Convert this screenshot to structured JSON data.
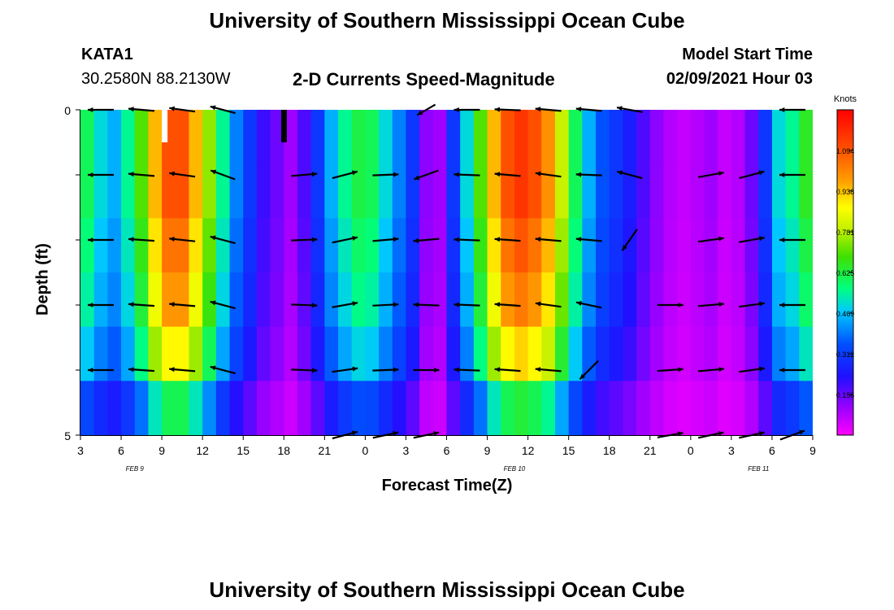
{
  "page": {
    "title_top": "University of Southern Mississippi Ocean Cube",
    "title_bottom": "University of Southern Mississippi Ocean Cube",
    "station": "KATA1",
    "coords": "30.2580N 88.2130W",
    "model_start_label": "Model Start Time",
    "model_start_value": "02/09/2021 Hour 03"
  },
  "chart_data": {
    "type": "heatmap",
    "title": "2-D Currents Speed-Magnitude",
    "xlabel": "Forecast Time(Z)",
    "ylabel": "Depth (ft)",
    "ylim": [
      0,
      5
    ],
    "y_ticks": [
      "0",
      "5"
    ],
    "x_ticks": [
      "3",
      "6",
      "9",
      "12",
      "15",
      "18",
      "21",
      "0",
      "3",
      "6",
      "9",
      "12",
      "15",
      "18",
      "21",
      "0",
      "3",
      "6",
      "9"
    ],
    "date_labels": [
      {
        "label": "FEB  9",
        "hour_index": 4
      },
      {
        "label": "FEB  10",
        "hour_index": 32
      },
      {
        "label": "FEB  11",
        "hour_index": 50
      }
    ],
    "x_hours_start": 3,
    "x_hours_span": 54,
    "colorbar": {
      "unit": "Knots",
      "ticks": [
        "1.094",
        "0.938",
        "0.781",
        "0.625",
        "0.469",
        "0.312",
        "0.156"
      ],
      "tick_values": [
        1.094,
        0.938,
        0.781,
        0.625,
        0.469,
        0.312,
        0.156
      ],
      "min": 0.0,
      "max": 1.25
    },
    "depth_layers": [
      0,
      1,
      2,
      3,
      4,
      5
    ],
    "speed_profile_hours": [
      3,
      4,
      5,
      6,
      7,
      8,
      9,
      10,
      11,
      12,
      13,
      14,
      15,
      16,
      17,
      18,
      19,
      20,
      21,
      22,
      23,
      24,
      25,
      26,
      27,
      28,
      29,
      30,
      31,
      32,
      33,
      34,
      35,
      36,
      37,
      38,
      39,
      40,
      41,
      42,
      43,
      44,
      45,
      46,
      47,
      48,
      49,
      50,
      51,
      52,
      53,
      54,
      55,
      56,
      57
    ],
    "speed_profile": [
      0.6,
      0.5,
      0.45,
      0.55,
      0.7,
      0.95,
      1.1,
      1.1,
      0.95,
      0.75,
      0.55,
      0.4,
      0.3,
      0.2,
      0.15,
      0.1,
      0.18,
      0.3,
      0.45,
      0.55,
      0.62,
      0.6,
      0.5,
      0.4,
      0.3,
      0.12,
      0.1,
      0.3,
      0.5,
      0.7,
      0.95,
      1.1,
      1.15,
      1.1,
      1.0,
      0.8,
      0.6,
      0.45,
      0.35,
      0.3,
      0.25,
      0.18,
      0.12,
      0.08,
      0.06,
      0.08,
      0.1,
      0.06,
      0.08,
      0.15,
      0.3,
      0.5,
      0.55,
      0.65,
      0.7
    ],
    "depth_factors": [
      1.0,
      1.0,
      0.95,
      0.9,
      0.8,
      0.55
    ],
    "arrows": [
      {
        "hour": 4.5,
        "depth": 0,
        "dir": 180,
        "len": 1.0
      },
      {
        "hour": 7.5,
        "depth": 0,
        "dir": 175,
        "len": 1.0
      },
      {
        "hour": 10.5,
        "depth": 0,
        "dir": 172,
        "len": 1.0
      },
      {
        "hour": 13.5,
        "depth": 0,
        "dir": 165,
        "len": 1.0
      },
      {
        "hour": 28.5,
        "depth": 0,
        "dir": 210,
        "len": 0.8
      },
      {
        "hour": 31.5,
        "depth": 0,
        "dir": 180,
        "len": 1.0
      },
      {
        "hour": 34.5,
        "depth": 0,
        "dir": 178,
        "len": 1.0
      },
      {
        "hour": 37.5,
        "depth": 0,
        "dir": 175,
        "len": 1.0
      },
      {
        "hour": 40.5,
        "depth": 0,
        "dir": 175,
        "len": 1.0
      },
      {
        "hour": 43.5,
        "depth": 0,
        "dir": 170,
        "len": 1.0
      },
      {
        "hour": 55.5,
        "depth": 0,
        "dir": 180,
        "len": 1.0
      },
      {
        "hour": 4.5,
        "depth": 1,
        "dir": 180,
        "len": 1.0
      },
      {
        "hour": 7.5,
        "depth": 1,
        "dir": 175,
        "len": 1.0
      },
      {
        "hour": 10.5,
        "depth": 1,
        "dir": 172,
        "len": 1.0
      },
      {
        "hour": 13.5,
        "depth": 1,
        "dir": 160,
        "len": 1.0
      },
      {
        "hour": 19.5,
        "depth": 1,
        "dir": 5,
        "len": 1.0
      },
      {
        "hour": 22.5,
        "depth": 1,
        "dir": 15,
        "len": 1.0
      },
      {
        "hour": 25.5,
        "depth": 1,
        "dir": 2,
        "len": 1.0
      },
      {
        "hour": 28.5,
        "depth": 1,
        "dir": 200,
        "len": 1.0
      },
      {
        "hour": 31.5,
        "depth": 1,
        "dir": 178,
        "len": 1.0
      },
      {
        "hour": 34.5,
        "depth": 1,
        "dir": 175,
        "len": 1.0
      },
      {
        "hour": 37.5,
        "depth": 1,
        "dir": 172,
        "len": 1.0
      },
      {
        "hour": 40.5,
        "depth": 1,
        "dir": 178,
        "len": 1.0
      },
      {
        "hour": 43.5,
        "depth": 1,
        "dir": 165,
        "len": 1.0
      },
      {
        "hour": 49.5,
        "depth": 1,
        "dir": 10,
        "len": 1.0
      },
      {
        "hour": 52.5,
        "depth": 1,
        "dir": 15,
        "len": 1.0
      },
      {
        "hour": 55.5,
        "depth": 1,
        "dir": 180,
        "len": 1.0
      },
      {
        "hour": 4.5,
        "depth": 2,
        "dir": 180,
        "len": 1.0
      },
      {
        "hour": 7.5,
        "depth": 2,
        "dir": 176,
        "len": 1.0
      },
      {
        "hour": 10.5,
        "depth": 2,
        "dir": 174,
        "len": 1.0
      },
      {
        "hour": 13.5,
        "depth": 2,
        "dir": 165,
        "len": 1.0
      },
      {
        "hour": 19.5,
        "depth": 2,
        "dir": 2,
        "len": 1.0
      },
      {
        "hour": 22.5,
        "depth": 2,
        "dir": 12,
        "len": 1.0
      },
      {
        "hour": 25.5,
        "depth": 2,
        "dir": 5,
        "len": 1.0
      },
      {
        "hour": 28.5,
        "depth": 2,
        "dir": 185,
        "len": 1.0
      },
      {
        "hour": 31.5,
        "depth": 2,
        "dir": 178,
        "len": 1.0
      },
      {
        "hour": 34.5,
        "depth": 2,
        "dir": 176,
        "len": 1.0
      },
      {
        "hour": 37.5,
        "depth": 2,
        "dir": 175,
        "len": 1.0
      },
      {
        "hour": 40.5,
        "depth": 2,
        "dir": 175,
        "len": 1.0
      },
      {
        "hour": 43.5,
        "depth": 2,
        "dir": 235,
        "len": 1.0
      },
      {
        "hour": 49.5,
        "depth": 2,
        "dir": 8,
        "len": 1.0
      },
      {
        "hour": 52.5,
        "depth": 2,
        "dir": 10,
        "len": 1.0
      },
      {
        "hour": 55.5,
        "depth": 2,
        "dir": 180,
        "len": 1.0
      },
      {
        "hour": 4.5,
        "depth": 3,
        "dir": 180,
        "len": 1.0
      },
      {
        "hour": 7.5,
        "depth": 3,
        "dir": 176,
        "len": 1.0
      },
      {
        "hour": 10.5,
        "depth": 3,
        "dir": 175,
        "len": 1.0
      },
      {
        "hour": 13.5,
        "depth": 3,
        "dir": 165,
        "len": 1.0
      },
      {
        "hour": 19.5,
        "depth": 3,
        "dir": 358,
        "len": 1.0
      },
      {
        "hour": 22.5,
        "depth": 3,
        "dir": 10,
        "len": 1.0
      },
      {
        "hour": 25.5,
        "depth": 3,
        "dir": 3,
        "len": 1.0
      },
      {
        "hour": 28.5,
        "depth": 3,
        "dir": 178,
        "len": 1.0
      },
      {
        "hour": 31.5,
        "depth": 3,
        "dir": 178,
        "len": 1.0
      },
      {
        "hour": 34.5,
        "depth": 3,
        "dir": 176,
        "len": 1.0
      },
      {
        "hour": 37.5,
        "depth": 3,
        "dir": 172,
        "len": 1.0
      },
      {
        "hour": 40.5,
        "depth": 3,
        "dir": 168,
        "len": 1.0
      },
      {
        "hour": 46.5,
        "depth": 3,
        "dir": 0,
        "len": 1.0
      },
      {
        "hour": 49.5,
        "depth": 3,
        "dir": 5,
        "len": 1.0
      },
      {
        "hour": 52.5,
        "depth": 3,
        "dir": 8,
        "len": 1.0
      },
      {
        "hour": 55.5,
        "depth": 3,
        "dir": 180,
        "len": 1.0
      },
      {
        "hour": 4.5,
        "depth": 4,
        "dir": 180,
        "len": 1.0
      },
      {
        "hour": 7.5,
        "depth": 4,
        "dir": 176,
        "len": 1.0
      },
      {
        "hour": 10.5,
        "depth": 4,
        "dir": 175,
        "len": 1.0
      },
      {
        "hour": 13.5,
        "depth": 4,
        "dir": 165,
        "len": 1.0
      },
      {
        "hour": 19.5,
        "depth": 4,
        "dir": 358,
        "len": 1.0
      },
      {
        "hour": 22.5,
        "depth": 4,
        "dir": 8,
        "len": 1.0
      },
      {
        "hour": 25.5,
        "depth": 4,
        "dir": 2,
        "len": 1.0
      },
      {
        "hour": 28.5,
        "depth": 4,
        "dir": 0,
        "len": 1.0
      },
      {
        "hour": 31.5,
        "depth": 4,
        "dir": 178,
        "len": 1.0
      },
      {
        "hour": 34.5,
        "depth": 4,
        "dir": 176,
        "len": 1.0
      },
      {
        "hour": 37.5,
        "depth": 4,
        "dir": 175,
        "len": 1.0
      },
      {
        "hour": 40.5,
        "depth": 4,
        "dir": 225,
        "len": 1.0
      },
      {
        "hour": 46.5,
        "depth": 4,
        "dir": 4,
        "len": 1.0
      },
      {
        "hour": 49.5,
        "depth": 4,
        "dir": 5,
        "len": 1.0
      },
      {
        "hour": 52.5,
        "depth": 4,
        "dir": 8,
        "len": 1.0
      },
      {
        "hour": 55.5,
        "depth": 4,
        "dir": 180,
        "len": 1.0
      },
      {
        "hour": 22.5,
        "depth": 5,
        "dir": 15,
        "len": 1.0
      },
      {
        "hour": 25.5,
        "depth": 5,
        "dir": 12,
        "len": 1.0
      },
      {
        "hour": 28.5,
        "depth": 5,
        "dir": 12,
        "len": 1.0
      },
      {
        "hour": 46.5,
        "depth": 5,
        "dir": 10,
        "len": 1.0
      },
      {
        "hour": 49.5,
        "depth": 5,
        "dir": 12,
        "len": 1.0
      },
      {
        "hour": 52.5,
        "depth": 5,
        "dir": 12,
        "len": 1.0
      },
      {
        "hour": 55.5,
        "depth": 5,
        "dir": 20,
        "len": 1.0
      }
    ],
    "colors": {
      "missing_white": "#ffffff",
      "missing_black": "#000000",
      "arrow": "#000000"
    }
  }
}
